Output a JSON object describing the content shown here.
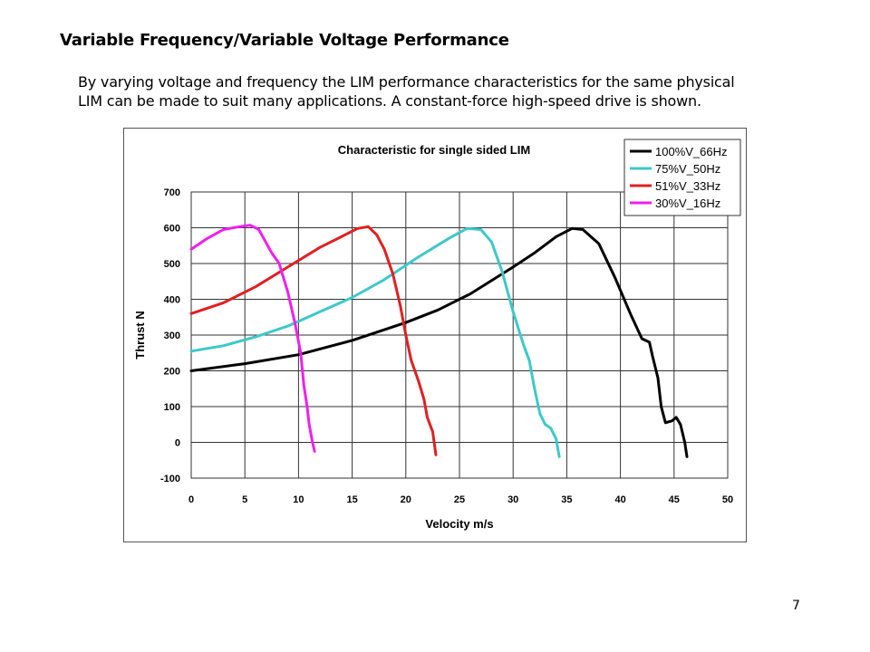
{
  "slide": {
    "title": "Variable Frequency/Variable Voltage Performance",
    "body_lines": [
      "By varying voltage and frequency the LIM performance characteristics for the same physical",
      "LIM can be made to suit many applications. A constant-force high-speed drive is shown."
    ],
    "page_number": "7"
  },
  "chart_data": {
    "type": "line",
    "title": "Characteristic for single sided LIM",
    "xlabel": "Velocity m/s",
    "ylabel": "Thrust N",
    "xlim": [
      0,
      50
    ],
    "ylim": [
      -100,
      700
    ],
    "xticks": [
      0,
      5,
      10,
      15,
      20,
      25,
      30,
      35,
      40,
      45,
      50
    ],
    "yticks": [
      -100,
      0,
      100,
      200,
      300,
      400,
      500,
      600,
      700
    ],
    "grid": true,
    "legend_position": "top-right",
    "series": [
      {
        "name": "100%V_66Hz",
        "color": "#000000",
        "points": [
          [
            0,
            200
          ],
          [
            5,
            220
          ],
          [
            10,
            245
          ],
          [
            15,
            285
          ],
          [
            20,
            335
          ],
          [
            23,
            370
          ],
          [
            26,
            415
          ],
          [
            30,
            490
          ],
          [
            32,
            530
          ],
          [
            34,
            575
          ],
          [
            35.5,
            598
          ],
          [
            36.5,
            595
          ],
          [
            38,
            555
          ],
          [
            39.5,
            460
          ],
          [
            41,
            355
          ],
          [
            42,
            290
          ],
          [
            42.7,
            280
          ],
          [
            43,
            240
          ],
          [
            43.5,
            180
          ],
          [
            43.8,
            100
          ],
          [
            44.2,
            55
          ],
          [
            44.8,
            60
          ],
          [
            45.2,
            70
          ],
          [
            45.6,
            50
          ],
          [
            46,
            0
          ],
          [
            46.2,
            -40
          ]
        ]
      },
      {
        "name": "75%V_50Hz",
        "color": "#3ec8c8",
        "points": [
          [
            0,
            255
          ],
          [
            3,
            270
          ],
          [
            6,
            295
          ],
          [
            9,
            325
          ],
          [
            12,
            365
          ],
          [
            15,
            405
          ],
          [
            18,
            455
          ],
          [
            21,
            515
          ],
          [
            24,
            570
          ],
          [
            25.7,
            598
          ],
          [
            27,
            595
          ],
          [
            28,
            560
          ],
          [
            29,
            475
          ],
          [
            30,
            365
          ],
          [
            31,
            270
          ],
          [
            31.5,
            230
          ],
          [
            32,
            150
          ],
          [
            32.5,
            80
          ],
          [
            33,
            50
          ],
          [
            33.5,
            40
          ],
          [
            34,
            10
          ],
          [
            34.3,
            -40
          ]
        ]
      },
      {
        "name": "51%V_33Hz",
        "color": "#e02020",
        "points": [
          [
            0,
            360
          ],
          [
            3,
            390
          ],
          [
            6,
            435
          ],
          [
            9,
            490
          ],
          [
            12,
            545
          ],
          [
            14,
            575
          ],
          [
            15.5,
            598
          ],
          [
            16.5,
            603
          ],
          [
            17.3,
            580
          ],
          [
            18,
            540
          ],
          [
            18.8,
            470
          ],
          [
            19.5,
            380
          ],
          [
            20,
            300
          ],
          [
            20.5,
            230
          ],
          [
            21.2,
            170
          ],
          [
            21.7,
            120
          ],
          [
            22,
            70
          ],
          [
            22.5,
            30
          ],
          [
            22.8,
            -35
          ]
        ]
      },
      {
        "name": "30%V_16Hz",
        "color": "#ee20ee",
        "points": [
          [
            0,
            540
          ],
          [
            1.5,
            570
          ],
          [
            3,
            595
          ],
          [
            4.5,
            603
          ],
          [
            5.5,
            607
          ],
          [
            6.3,
            595
          ],
          [
            7.5,
            530
          ],
          [
            8.2,
            500
          ],
          [
            9,
            420
          ],
          [
            9.7,
            330
          ],
          [
            10.2,
            250
          ],
          [
            10.5,
            160
          ],
          [
            10.8,
            100
          ],
          [
            11,
            50
          ],
          [
            11.3,
            0
          ],
          [
            11.5,
            -25
          ]
        ]
      }
    ]
  }
}
